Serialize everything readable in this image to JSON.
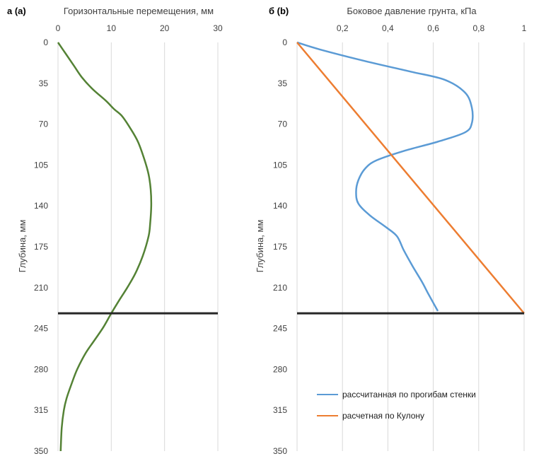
{
  "chart_data": [
    {
      "type": "line",
      "panel_label": "а (a)",
      "title": "Горизонтальные перемещения,  мм",
      "ylabel": "Глубина, мм",
      "xlim": [
        0,
        30
      ],
      "ylim": [
        0,
        350
      ],
      "y_inverted": true,
      "x_axis_position": "top",
      "x_ticks": [
        "0",
        "10",
        "20",
        "30"
      ],
      "y_ticks": [
        "0",
        "35",
        "70",
        "105",
        "140",
        "175",
        "210",
        "245",
        "280",
        "315",
        "350"
      ],
      "grid": "vertical",
      "series": [
        {
          "color": "#548235",
          "points": [
            [
              0,
              0
            ],
            [
              1.5,
              10
            ],
            [
              3,
              20
            ],
            [
              4.5,
              30
            ],
            [
              6.5,
              40
            ],
            [
              9,
              50
            ],
            [
              10.5,
              57
            ],
            [
              12,
              63
            ],
            [
              13.5,
              73
            ],
            [
              15,
              85
            ],
            [
              16.2,
              100
            ],
            [
              17,
              113
            ],
            [
              17.4,
              126
            ],
            [
              17.5,
              140
            ],
            [
              17.3,
              155
            ],
            [
              17,
              166
            ],
            [
              15.9,
              183
            ],
            [
              14.5,
              198
            ],
            [
              13,
              210
            ],
            [
              11.6,
              220
            ],
            [
              10,
              232
            ],
            [
              8.5,
              244
            ],
            [
              6.7,
              256
            ],
            [
              5.2,
              266
            ],
            [
              3.6,
              280
            ],
            [
              2.5,
              293
            ],
            [
              1.6,
              305
            ],
            [
              1.1,
              315
            ],
            [
              0.7,
              330
            ],
            [
              0.5,
              350
            ]
          ]
        }
      ],
      "horizontal_line": {
        "y": 232,
        "color": "#262626"
      }
    },
    {
      "type": "line",
      "panel_label": "б (b)",
      "title": "Боковое давление  грунта, кПа",
      "ylabel": "Глубина, мм",
      "xlim": [
        0,
        1
      ],
      "ylim": [
        0,
        350
      ],
      "y_inverted": true,
      "x_axis_position": "top",
      "x_ticks": [
        "0,2",
        "0,4",
        "0,6",
        "0,8",
        "1"
      ],
      "y_ticks": [
        "0",
        "35",
        "70",
        "105",
        "140",
        "175",
        "210",
        "245",
        "280",
        "315",
        "350"
      ],
      "grid": "vertical",
      "legend_position": "bottom-right",
      "series": [
        {
          "name": "рассчитанная по прогибам стенки",
          "color": "#5b9bd5",
          "points": [
            [
              0,
              0
            ],
            [
              0.1,
              6
            ],
            [
              0.3,
              16
            ],
            [
              0.5,
              25
            ],
            [
              0.65,
              32
            ],
            [
              0.74,
              43
            ],
            [
              0.77,
              56
            ],
            [
              0.77,
              69
            ],
            [
              0.74,
              77
            ],
            [
              0.62,
              85
            ],
            [
              0.47,
              93
            ],
            [
              0.35,
              101
            ],
            [
              0.3,
              108
            ],
            [
              0.27,
              118
            ],
            [
              0.26,
              128
            ],
            [
              0.27,
              138
            ],
            [
              0.32,
              148
            ],
            [
              0.39,
              158
            ],
            [
              0.44,
              166
            ],
            [
              0.47,
              178
            ],
            [
              0.51,
              192
            ],
            [
              0.55,
              205
            ],
            [
              0.58,
              216
            ],
            [
              0.62,
              230
            ]
          ]
        },
        {
          "name": "расчетная по Кулону",
          "color": "#ed7d31",
          "points": [
            [
              0,
              0
            ],
            [
              1,
              232
            ]
          ]
        }
      ],
      "horizontal_line": {
        "y": 232,
        "color": "#262626"
      }
    }
  ]
}
